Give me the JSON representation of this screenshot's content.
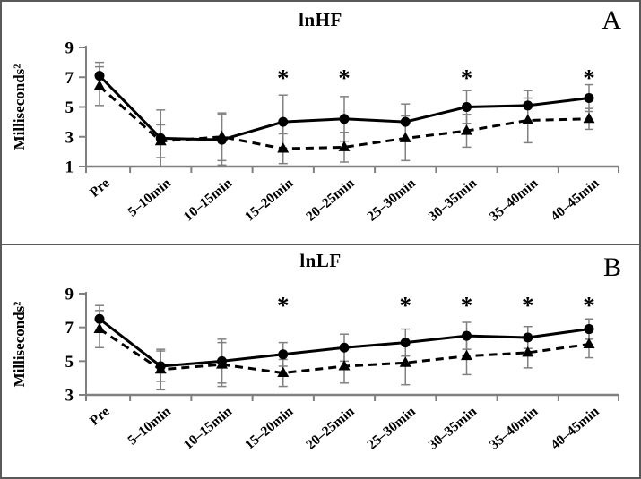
{
  "figure_title": "Heart-rate-variability line charts, panels A (lnHF) and B (lnLF)",
  "colors": {
    "series_line": "#000000",
    "marker": "#000000",
    "error_bar": "#808080",
    "axis": "#808080",
    "text": "#000000",
    "background": "#ffffff",
    "border": "#595959"
  },
  "chart_data": [
    {
      "type": "line",
      "title": "lnHF",
      "panel_label": "A",
      "ylabel": "Milliseconds²",
      "xlabel": "",
      "ylim": [
        1,
        9
      ],
      "yticks": [
        9,
        7,
        5,
        3,
        1
      ],
      "grid": false,
      "legend": "none",
      "categories": [
        "Pre",
        "5–10min",
        "10–15min",
        "15–20min",
        "20–25min",
        "25–30min",
        "30–35min",
        "35–40min",
        "40–45min"
      ],
      "series": [
        {
          "name": "solid-circle-series",
          "marker": "circle",
          "line_style": "solid",
          "values": [
            7.1,
            2.9,
            2.8,
            4.0,
            4.2,
            4.0,
            5.0,
            5.1,
            5.6
          ],
          "errors": [
            0.9,
            1.9,
            1.7,
            1.8,
            1.5,
            1.2,
            1.1,
            1.0,
            0.9
          ]
        },
        {
          "name": "dashed-triangle-series",
          "marker": "triangle",
          "line_style": "dashed",
          "values": [
            6.4,
            2.7,
            3.0,
            2.2,
            2.3,
            2.9,
            3.4,
            4.1,
            4.2
          ],
          "errors": [
            1.3,
            1.1,
            1.6,
            1.0,
            1.0,
            1.5,
            1.1,
            1.5,
            0.7
          ]
        }
      ],
      "significance_marks": {
        "symbol": "*",
        "category_indexes": [
          3,
          4,
          6,
          8
        ]
      }
    },
    {
      "type": "line",
      "title": "lnLF",
      "panel_label": "B",
      "ylabel": "Milliseconds²",
      "xlabel": "",
      "ylim": [
        3,
        9
      ],
      "yticks": [
        9,
        7,
        5,
        3
      ],
      "grid": false,
      "legend": "none",
      "categories": [
        "Pre",
        "5–10min",
        "10–15min",
        "15–20min",
        "20–25min",
        "25–30min",
        "30–35min",
        "35–40min",
        "40–45min"
      ],
      "series": [
        {
          "name": "solid-circle-series",
          "marker": "circle",
          "line_style": "solid",
          "values": [
            7.5,
            4.7,
            5.0,
            5.4,
            5.8,
            6.1,
            6.5,
            6.4,
            6.9
          ],
          "errors": [
            0.8,
            0.9,
            1.3,
            0.7,
            0.8,
            0.8,
            0.8,
            0.65,
            0.6
          ]
        },
        {
          "name": "dashed-triangle-series",
          "marker": "triangle",
          "line_style": "dashed",
          "values": [
            6.9,
            4.5,
            4.8,
            4.3,
            4.7,
            4.9,
            5.3,
            5.5,
            6.0
          ],
          "errors": [
            1.1,
            1.2,
            1.3,
            0.8,
            1.0,
            1.3,
            1.1,
            0.9,
            0.8
          ]
        }
      ],
      "significance_marks": {
        "symbol": "*",
        "category_indexes": [
          3,
          5,
          6,
          7,
          8
        ]
      }
    }
  ]
}
